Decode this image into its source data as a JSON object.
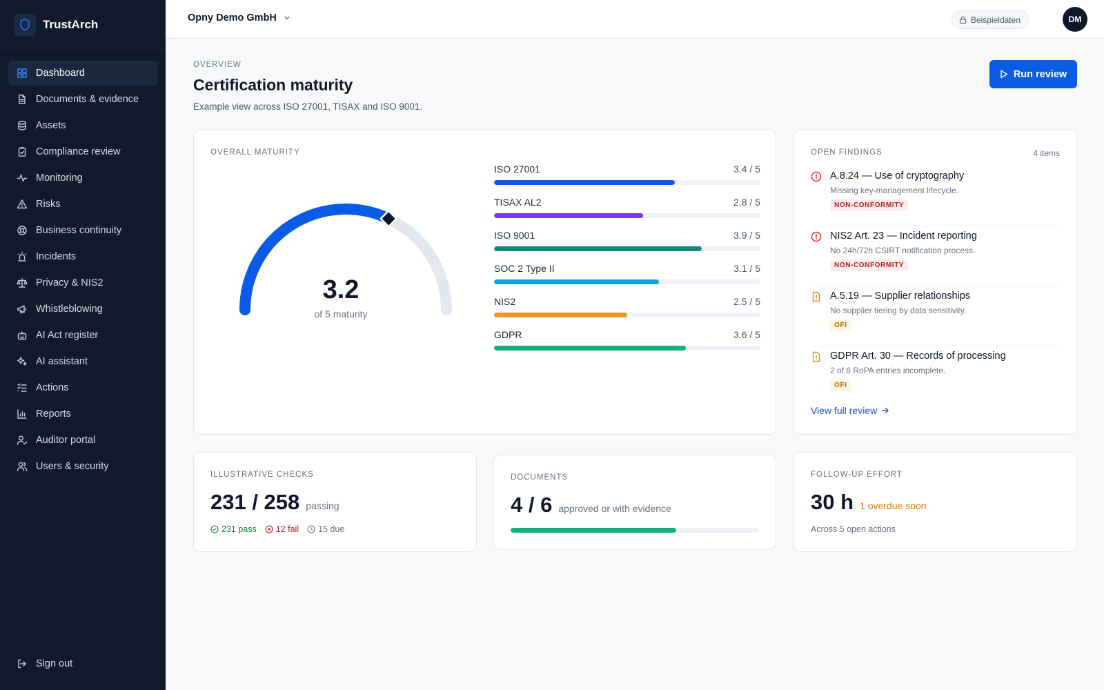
{
  "brand": {
    "name": "TrustArch"
  },
  "nav": [
    {
      "label": "Dashboard",
      "icon": "grid-icon",
      "active": true
    },
    {
      "label": "Documents & evidence",
      "icon": "document-icon"
    },
    {
      "label": "Assets",
      "icon": "database-icon"
    },
    {
      "label": "Compliance review",
      "icon": "clipboard-check-icon"
    },
    {
      "label": "Monitoring",
      "icon": "activity-icon"
    },
    {
      "label": "Risks",
      "icon": "warning-triangle-icon"
    },
    {
      "label": "Business continuity",
      "icon": "lifebuoy-icon"
    },
    {
      "label": "Incidents",
      "icon": "siren-icon"
    },
    {
      "label": "Privacy & NIS2",
      "icon": "scale-icon"
    },
    {
      "label": "Whistleblowing",
      "icon": "megaphone-icon"
    },
    {
      "label": "AI Act register",
      "icon": "bot-icon"
    },
    {
      "label": "AI assistant",
      "icon": "sparkles-icon"
    },
    {
      "label": "Actions",
      "icon": "list-checks-icon"
    },
    {
      "label": "Reports",
      "icon": "bar-chart-icon"
    },
    {
      "label": "Auditor portal",
      "icon": "user-check-icon"
    },
    {
      "label": "Users & security",
      "icon": "users-icon"
    }
  ],
  "signout": {
    "label": "Sign out",
    "icon": "logout-icon"
  },
  "topbar": {
    "org": "Opny Demo GmbH",
    "sample_badge": "Beispieldaten",
    "avatar_initials": "DM"
  },
  "header": {
    "eyebrow": "OVERVIEW",
    "title": "Certification maturity",
    "subtitle": "Example view across ISO 27001, TISAX and ISO 9001.",
    "run_button": "Run review"
  },
  "maturity": {
    "label": "OVERALL MATURITY",
    "gauge": {
      "value": 3.2,
      "max": 5,
      "display": "3.2",
      "caption": "of 5 maturity",
      "fill_color": "#0a5ce6",
      "track_color": "#e2e8f0"
    },
    "frameworks": [
      {
        "name": "ISO 27001",
        "score": "3.4 / 5",
        "value": 3.4,
        "color": "#0a5ce6"
      },
      {
        "name": "TISAX AL2",
        "score": "2.8 / 5",
        "value": 2.8,
        "color": "#7c3aed"
      },
      {
        "name": "ISO 9001",
        "score": "3.9 / 5",
        "value": 3.9,
        "color": "#0f8a78"
      },
      {
        "name": "SOC 2 Type II",
        "score": "3.1 / 5",
        "value": 3.1,
        "color": "#0ea5d8"
      },
      {
        "name": "NIS2",
        "score": "2.5 / 5",
        "value": 2.5,
        "color": "#f0922d"
      },
      {
        "name": "GDPR",
        "score": "3.6 / 5",
        "value": 3.6,
        "color": "#12b07a"
      }
    ]
  },
  "findings": {
    "label": "OPEN FINDINGS",
    "count": "4 items",
    "items": [
      {
        "title": "A.8.24 — Use of cryptography",
        "desc": "Missing key-management lifecycle.",
        "badge": "NON-CONFORMITY",
        "kind": "nc"
      },
      {
        "title": "NIS2 Art. 23 — Incident reporting",
        "desc": "No 24h/72h CSIRT notification process.",
        "badge": "NON-CONFORMITY",
        "kind": "nc"
      },
      {
        "title": "A.5.19 — Supplier relationships",
        "desc": "No supplier tiering by data sensitivity.",
        "badge": "OFI",
        "kind": "ofi"
      },
      {
        "title": "GDPR Art. 30 — Records of processing",
        "desc": "2 of 6 RoPA entries incomplete.",
        "badge": "OFI",
        "kind": "ofi"
      }
    ],
    "view_link": "View full review"
  },
  "checks": {
    "label": "ILLUSTRATIVE CHECKS",
    "value": "231 / 258",
    "suffix": "passing",
    "pass": "231 pass",
    "fail": "12 fail",
    "due": "15 due"
  },
  "documents": {
    "label": "DOCUMENTS",
    "value": "4 / 6",
    "suffix": "approved or with evidence",
    "progress": 0.667,
    "color": "#12b07a"
  },
  "effort": {
    "label": "FOLLOW-UP EFFORT",
    "value": "30 h",
    "suffix": "1 overdue soon",
    "note": "Across 5 open actions"
  }
}
